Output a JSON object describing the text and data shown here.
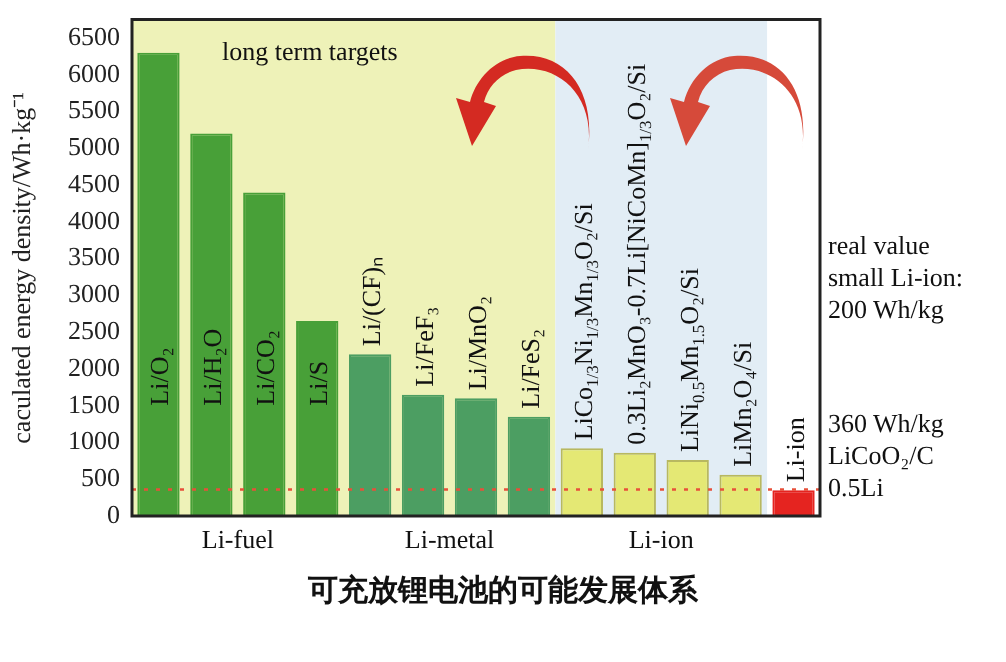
{
  "chart_data": {
    "type": "bar",
    "title": "可充放锂电池的可能发展体系",
    "ylabel": "caculated energy density/Wh·kg⁻¹",
    "categories": [
      "Li/O₂",
      "Li/H₂O",
      "Li/CO₂",
      "Li/S",
      "Li/(CF)ₙ",
      "Li/FeF₃",
      "Li/MnO₂",
      "Li/FeS₂",
      "LiCo$_{1/3}$Ni$_{1/3}$Mn$_{1/3}$O₂/Si",
      "0.3Li₂MnO₃-0.7Li[NiCoMn]$_{1/3}$O₂/Si",
      "LiNi$_{0.5}$Mn$_{1.5}$O₂/Si",
      "LiMn₂O₄/Si",
      "Li-ion"
    ],
    "values": [
      6300,
      5200,
      4400,
      2650,
      2200,
      1650,
      1600,
      1350,
      920,
      860,
      760,
      560,
      350
    ],
    "colors": [
      "#48a038",
      "#48a038",
      "#48a038",
      "#48a038",
      "#4c9e62",
      "#4c9e62",
      "#4c9e62",
      "#4c9e62",
      "#e4e874",
      "#e4e874",
      "#e4e874",
      "#e4e874",
      "#e52420"
    ],
    "ylim": [
      0,
      6750
    ],
    "yticks": [
      0,
      500,
      1000,
      1500,
      2000,
      2500,
      3000,
      3500,
      4000,
      4500,
      5000,
      5500,
      6000,
      6500
    ],
    "grid": false,
    "legend": false,
    "bands": [
      {
        "axis": "x",
        "from": "Li/O₂",
        "to": "Li/FeS₂",
        "color": "#eef2b8"
      },
      {
        "axis": "x",
        "from": "LiCo$_{1/3}$Ni$_{1/3}$Mn$_{1/3}$O₂/Si",
        "to": "LiMn₂O₄/Si",
        "color": "#e2edf5"
      }
    ],
    "ref_lines": [
      {
        "axis": "y",
        "value": 360,
        "label": "360 Wh/kg\nLiCoO₂/C\n0.5Li",
        "color": "#e8503a",
        "line_style": "dotted"
      }
    ],
    "annotations": [
      "long term targets",
      "Li-fuel",
      "Li-metal",
      "Li-ion",
      "real value\nsmall Li-ion:\n200 Wh/kg"
    ]
  }
}
